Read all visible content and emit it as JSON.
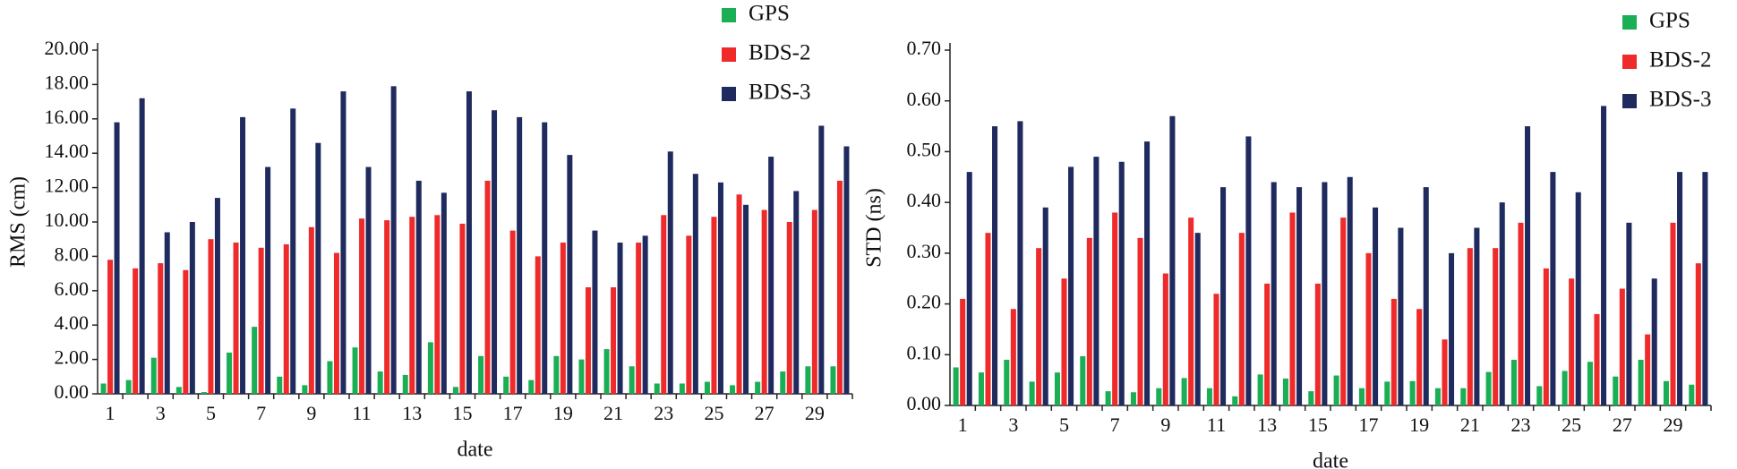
{
  "chart_data": [
    {
      "type": "bar",
      "ylabel": "RMS (cm)",
      "xlabel": "date",
      "categories": [
        "1",
        null,
        "3",
        null,
        "5",
        null,
        "7",
        null,
        "9",
        null,
        "11",
        null,
        "13",
        null,
        "15",
        null,
        "17",
        null,
        "19",
        null,
        "21",
        null,
        "23",
        null,
        "25",
        null,
        "27",
        null,
        "29",
        null
      ],
      "series": [
        {
          "name": "GPS",
          "color": "#1aaf54",
          "values": [
            0.6,
            0.8,
            2.1,
            0.4,
            0.1,
            2.4,
            3.9,
            1.0,
            0.5,
            1.9,
            2.7,
            1.3,
            1.1,
            3.0,
            0.4,
            2.2,
            1.0,
            0.8,
            2.2,
            2.0,
            2.6,
            1.6,
            0.6,
            0.6,
            0.7,
            0.5,
            0.7,
            1.3,
            1.6,
            1.6
          ]
        },
        {
          "name": "BDS-2",
          "color": "#ee2a2a",
          "values": [
            7.8,
            7.3,
            7.6,
            7.2,
            9.0,
            8.8,
            8.5,
            8.7,
            9.7,
            8.2,
            10.2,
            10.1,
            10.3,
            10.4,
            9.9,
            12.4,
            9.5,
            8.0,
            8.8,
            6.2,
            6.2,
            8.8,
            10.4,
            9.2,
            10.3,
            11.6,
            10.7,
            10.0,
            10.7,
            12.4
          ]
        },
        {
          "name": "BDS-3",
          "color": "#1f2a5e",
          "values": [
            15.8,
            17.2,
            9.4,
            10.0,
            11.4,
            16.1,
            13.2,
            16.6,
            14.6,
            17.6,
            13.2,
            17.9,
            12.4,
            11.7,
            17.6,
            16.5,
            16.1,
            15.8,
            13.9,
            9.5,
            8.8,
            9.2,
            14.1,
            12.8,
            12.3,
            11.0,
            13.8,
            11.8,
            15.6,
            14.4
          ]
        }
      ],
      "ylim": [
        0,
        20
      ],
      "yticks": [
        {
          "value": 0,
          "label": "0.00"
        },
        {
          "value": 2,
          "label": "2.00"
        },
        {
          "value": 4,
          "label": "4.00"
        },
        {
          "value": 6,
          "label": "6.00"
        },
        {
          "value": 8,
          "label": "8.00"
        },
        {
          "value": 10,
          "label": "10.00"
        },
        {
          "value": 12,
          "label": "12.00"
        },
        {
          "value": 14,
          "label": "14.00"
        },
        {
          "value": 16,
          "label": "16.00"
        },
        {
          "value": 18,
          "label": "18.00"
        },
        {
          "value": 20,
          "label": "20.00"
        }
      ],
      "grid": false,
      "legend": "upper right"
    },
    {
      "type": "bar",
      "ylabel": "STD (ns)",
      "xlabel": "date",
      "categories": [
        "1",
        null,
        "3",
        null,
        "5",
        null,
        "7",
        null,
        "9",
        null,
        "11",
        null,
        "13",
        null,
        "15",
        null,
        "17",
        null,
        "19",
        null,
        "21",
        null,
        "23",
        null,
        "25",
        null,
        "27",
        null,
        "29",
        null
      ],
      "series": [
        {
          "name": "GPS",
          "color": "#1aaf54",
          "values": [
            0.075,
            0.065,
            0.09,
            0.047,
            0.065,
            0.097,
            0.028,
            0.026,
            0.034,
            0.054,
            0.034,
            0.018,
            0.061,
            0.053,
            0.028,
            0.059,
            0.034,
            0.047,
            0.048,
            0.034,
            0.034,
            0.066,
            0.09,
            0.038,
            0.068,
            0.086,
            0.057,
            0.09,
            0.048,
            0.041
          ]
        },
        {
          "name": "BDS-2",
          "color": "#ee2a2a",
          "values": [
            0.21,
            0.34,
            0.19,
            0.31,
            0.25,
            0.33,
            0.38,
            0.33,
            0.26,
            0.37,
            0.22,
            0.34,
            0.24,
            0.38,
            0.24,
            0.37,
            0.3,
            0.21,
            0.19,
            0.13,
            0.31,
            0.31,
            0.36,
            0.27,
            0.25,
            0.18,
            0.23,
            0.14,
            0.36,
            0.28
          ]
        },
        {
          "name": "BDS-3",
          "color": "#1f2a5e",
          "values": [
            0.46,
            0.55,
            0.56,
            0.39,
            0.47,
            0.49,
            0.48,
            0.52,
            0.57,
            0.34,
            0.43,
            0.53,
            0.44,
            0.43,
            0.44,
            0.45,
            0.39,
            0.35,
            0.43,
            0.3,
            0.35,
            0.4,
            0.55,
            0.46,
            0.42,
            0.59,
            0.36,
            0.25,
            0.46,
            0.46
          ]
        }
      ],
      "ylim": [
        0,
        0.7
      ],
      "yticks": [
        {
          "value": 0,
          "label": "0.00"
        },
        {
          "value": 0.1,
          "label": "0.10"
        },
        {
          "value": 0.2,
          "label": "0.20"
        },
        {
          "value": 0.3,
          "label": "0.30"
        },
        {
          "value": 0.4,
          "label": "0.40"
        },
        {
          "value": 0.5,
          "label": "0.50"
        },
        {
          "value": 0.6,
          "label": "0.60"
        },
        {
          "value": 0.7,
          "label": "0.70"
        }
      ],
      "grid": false,
      "legend": "upper right"
    }
  ]
}
